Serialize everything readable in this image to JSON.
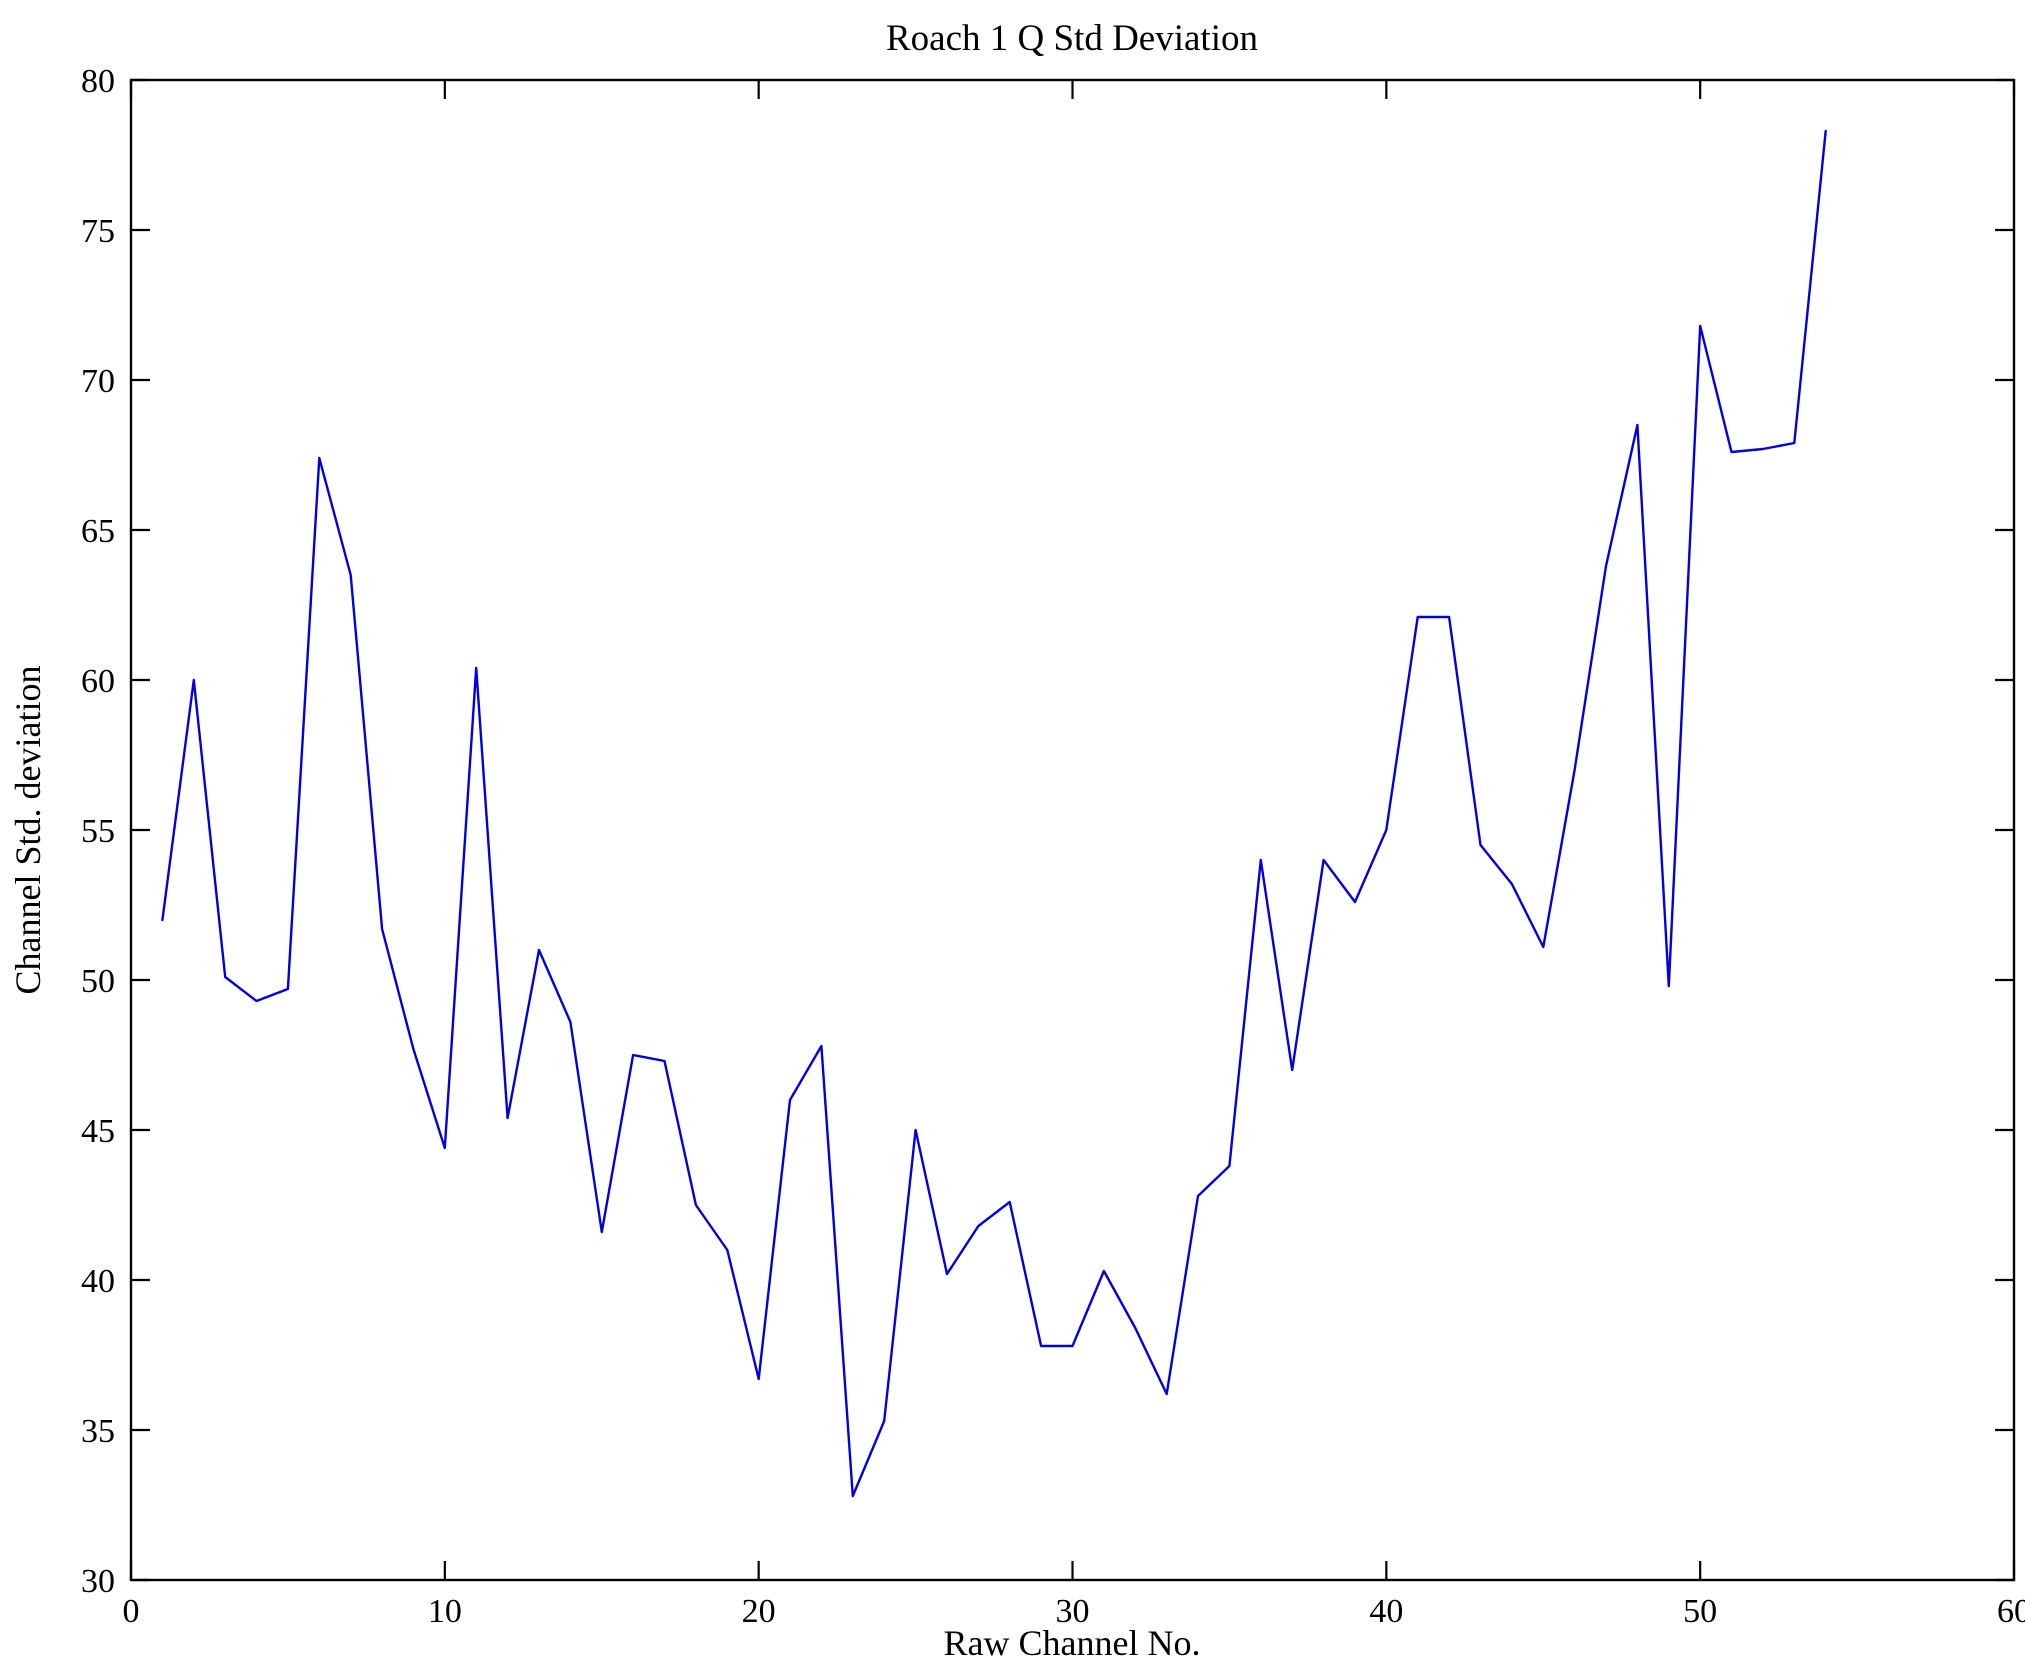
{
  "chart_data": {
    "type": "line",
    "title": "Roach 1 Q Std Deviation",
    "xlabel": "Raw Channel No.",
    "ylabel": "Channel Std. deviation",
    "xlim": [
      0,
      60
    ],
    "ylim": [
      30,
      80
    ],
    "x_ticks": [
      0,
      10,
      20,
      30,
      40,
      50,
      60
    ],
    "y_ticks": [
      30,
      35,
      40,
      45,
      50,
      55,
      60,
      65,
      70,
      75,
      80
    ],
    "grid": false,
    "legend": "none",
    "line_color": "#0000e0",
    "frame_color": "#000000",
    "series": [
      {
        "name": "Channel Std. deviation",
        "x": [
          1,
          2,
          3,
          4,
          5,
          6,
          7,
          8,
          9,
          10,
          11,
          12,
          13,
          14,
          15,
          16,
          17,
          18,
          19,
          20,
          21,
          22,
          23,
          24,
          25,
          26,
          27,
          28,
          29,
          30,
          31,
          32,
          33,
          34,
          35,
          36,
          37,
          38,
          39,
          40,
          41,
          42,
          43,
          44,
          45,
          46,
          47,
          48,
          49,
          50,
          51,
          52,
          53,
          54
        ],
        "y": [
          52.0,
          60.0,
          50.1,
          49.3,
          49.7,
          67.4,
          63.5,
          51.7,
          47.7,
          44.4,
          60.4,
          45.4,
          51.0,
          48.6,
          41.6,
          47.5,
          47.3,
          42.5,
          41.0,
          36.7,
          46.0,
          47.8,
          32.8,
          35.3,
          45.0,
          40.2,
          41.8,
          42.6,
          37.8,
          37.8,
          40.3,
          38.4,
          36.2,
          42.8,
          43.8,
          54.0,
          47.0,
          54.0,
          52.6,
          55.0,
          62.1,
          62.1,
          54.5,
          53.2,
          51.1,
          57.0,
          63.8,
          68.5,
          49.8,
          71.8,
          67.6,
          67.7,
          67.9,
          78.3
        ]
      }
    ]
  }
}
